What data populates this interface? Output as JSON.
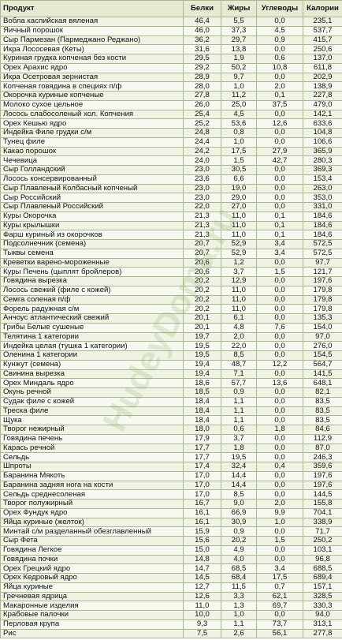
{
  "table": {
    "header": [
      "Продукт",
      "Белки",
      "Жиры",
      "Углеводы",
      "Калории"
    ],
    "rows": [
      [
        "Вобла каспийская вяленая",
        "46,4",
        "5,5",
        "0,0",
        "235,1"
      ],
      [
        "Яичный порошок",
        "46,0",
        "37,3",
        "4,5",
        "537,7"
      ],
      [
        "Сыр Пармезан (Пармеджано Реджано)",
        "36,2",
        "29,7",
        "0,9",
        "415,7"
      ],
      [
        "Икра Лососевая (Кеты)",
        "31,6",
        "13,8",
        "0,0",
        "250,6"
      ],
      [
        "Куриная грудка копченая без кости",
        "29,5",
        "1,9",
        "0,6",
        "137,0"
      ],
      [
        "Орех Арахис ядро",
        "29,2",
        "50,2",
        "10,8",
        "611,8"
      ],
      [
        "Икра Осетровая зернистая",
        "28,9",
        "9,7",
        "0,0",
        "202,9"
      ],
      [
        "Копченая говядина в специях п/ф",
        "28,0",
        "1,0",
        "2,0",
        "138,9"
      ],
      [
        "Окорочка куриные копченые",
        "27,8",
        "11,2",
        "0,1",
        "227,8"
      ],
      [
        "Молоко сухое цельное",
        "26,0",
        "25,0",
        "37,5",
        "479,0"
      ],
      [
        "Лосось слабосоленый хол. Копчения",
        "25,4",
        "4,5",
        "0,0",
        "142,1"
      ],
      [
        "Орех Кешью ядро",
        "25,2",
        "53,6",
        "12,6",
        "633,6"
      ],
      [
        "Индейка Филе грудки с/м",
        "24,8",
        "0,8",
        "0,0",
        "104,8"
      ],
      [
        "Тунец филе",
        "24,4",
        "1,0",
        "0,0",
        "106,6"
      ],
      [
        "Какао порошок",
        "24,2",
        "17,5",
        "27,9",
        "365,9"
      ],
      [
        "Чечевица",
        "24,0",
        "1,5",
        "42,7",
        "280,3"
      ],
      [
        "Сыр Голландский",
        "23,0",
        "30,5",
        "0,0",
        "369,3"
      ],
      [
        "Лосось консервированный",
        "23,6",
        "6,6",
        "0,0",
        "153,4"
      ],
      [
        "Сыр Плавленый Колбасный копченый",
        "23,0",
        "19,0",
        "0,0",
        "263,0"
      ],
      [
        "Сыр Российский",
        "23,0",
        "29,0",
        "0,0",
        "353,0"
      ],
      [
        "Сыр Плавленый Российский",
        "22,0",
        "27,0",
        "0,0",
        "331,0"
      ],
      [
        "Куры Окорочка",
        "21,3",
        "11,0",
        "0,1",
        "184,6"
      ],
      [
        "Куры крылышки",
        "21,3",
        "11,0",
        "0,1",
        "184,6"
      ],
      [
        "Фарш куриный из окорочков",
        "21,3",
        "11,0",
        "0,1",
        "184,6"
      ],
      [
        "Подсолнечник (семена)",
        "20,7",
        "52,9",
        "3,4",
        "572,5"
      ],
      [
        "Тыквы семена",
        "20,7",
        "52,9",
        "3,4",
        "572,5"
      ],
      [
        "Креветки варено-мороженные",
        "20,6",
        "1,2",
        "0,0",
        "97,7"
      ],
      [
        "Куры Печень (цыплят бройлеров)",
        "20,6",
        "3,7",
        "1,5",
        "121,7"
      ],
      [
        "Говядина вырезка",
        "20,2",
        "12,9",
        "0,0",
        "197,6"
      ],
      [
        "Лосось свежий (филе с кожей)",
        "20,2",
        "11,0",
        "0,0",
        "179,8"
      ],
      [
        "Семга соленая п/ф",
        "20,2",
        "11,0",
        "0,0",
        "179,8"
      ],
      [
        "Форель радужная с/м",
        "20,2",
        "11,0",
        "0,0",
        "179,8"
      ],
      [
        "Анчоус атлантический свежий",
        "20,1",
        "6,1",
        "0,0",
        "135,3"
      ],
      [
        "Грибы Белые сушеные",
        "20,1",
        "4,8",
        "7,6",
        "154,0"
      ],
      [
        "Телятина 1 категории",
        "19,7",
        "2,0",
        "0,0",
        "97,0"
      ],
      [
        "Индейка целая (тушка 1 категории)",
        "19,5",
        "22,0",
        "0,0",
        "276,0"
      ],
      [
        "Оленина 1 категории",
        "19,5",
        "8,5",
        "0,0",
        "154,5"
      ],
      [
        "Кунжут (семена)",
        "19,4",
        "48,7",
        "12,2",
        "564,7"
      ],
      [
        "Свинина вырезка",
        "19,4",
        "7,1",
        "0,0",
        "141,5"
      ],
      [
        "Орех Миндаль ядро",
        "18,6",
        "57,7",
        "13,6",
        "648,1"
      ],
      [
        "Окунь речной",
        "18,5",
        "0,9",
        "0,0",
        "82,1"
      ],
      [
        "Судак филе с кожей",
        "18,4",
        "1,1",
        "0,0",
        "83,5"
      ],
      [
        "Треска филе",
        "18,4",
        "1,1",
        "0,0",
        "83,5"
      ],
      [
        "Щука",
        "18,4",
        "1,1",
        "0,0",
        "83,5"
      ],
      [
        "Творог нежирный",
        "18,0",
        "0,6",
        "1,8",
        "84,6"
      ],
      [
        "Говядина печень",
        "17,9",
        "3,7",
        "0,0",
        "112,9"
      ],
      [
        "Карась речной",
        "17,7",
        "1,8",
        "0,0",
        "87,0"
      ],
      [
        "Сельдь",
        "17,7",
        "19,5",
        "0,0",
        "246,3"
      ],
      [
        "Шпроты",
        "17,4",
        "32,4",
        "0,4",
        "359,6"
      ],
      [
        "Баранина Мякоть",
        "17,0",
        "14,4",
        "0,0",
        "197,6"
      ],
      [
        "Баранина задняя нога на кости",
        "17,0",
        "14,4",
        "0,0",
        "197,6"
      ],
      [
        "Сельдь среднесоленая",
        "17,0",
        "8,5",
        "0,0",
        "144,5"
      ],
      [
        "Творог полужирный",
        "16,7",
        "9,0",
        "2,0",
        "155,8"
      ],
      [
        "Орех Фундук ядро",
        "16,1",
        "66,9",
        "9,9",
        "704,1"
      ],
      [
        "Яйца куриные (желток)",
        "16,1",
        "30,9",
        "1,0",
        "338,9"
      ],
      [
        "Минтай с/м разделанный обезглавленный",
        "15,9",
        "0,9",
        "0,0",
        "71,7"
      ],
      [
        "Сыр Фета",
        "15,6",
        "20,2",
        "1,5",
        "250,2"
      ],
      [
        "Говядина Легкое",
        "15,0",
        "4,9",
        "0,0",
        "103,1"
      ],
      [
        "Говядина почки",
        "14,8",
        "4,0",
        "0,0",
        "96,8"
      ],
      [
        "Орех Грецкий ядро",
        "14,7",
        "68,5",
        "3,4",
        "688,5"
      ],
      [
        "Орех Кедровый ядро",
        "14,5",
        "68,4",
        "17,5",
        "689,4"
      ],
      [
        "Яйца куриные",
        "12,7",
        "11,5",
        "0,7",
        "157,1"
      ],
      [
        "Гречневая ядрица",
        "12,6",
        "3,3",
        "62,1",
        "328,5"
      ],
      [
        "Макаронные изделия",
        "11,0",
        "1,3",
        "69,7",
        "330,3"
      ],
      [
        "Крабовые палочки",
        "10,0",
        "1,0",
        "0,0",
        "94,0"
      ],
      [
        "Перловая крупа",
        "9,3",
        "1,1",
        "73,7",
        "313,1"
      ],
      [
        "Рис",
        "7,5",
        "2,6",
        "56,1",
        "277,8"
      ]
    ]
  },
  "watermark": "HudeyDoma.ru"
}
